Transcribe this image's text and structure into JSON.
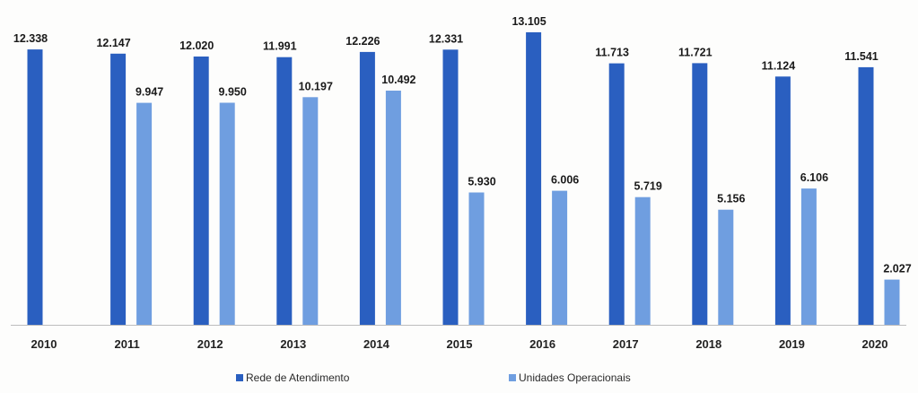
{
  "chart_data": {
    "type": "bar",
    "title": "",
    "xlabel": "",
    "ylabel": "",
    "categories": [
      "2010",
      "2011",
      "2012",
      "2013",
      "2014",
      "2015",
      "2016",
      "2017",
      "2018",
      "2019",
      "2020"
    ],
    "series": [
      {
        "name": "Rede de Atendimento",
        "color": "#2a5fc0",
        "values": [
          12338,
          12147,
          12020,
          11991,
          12226,
          12331,
          13105,
          11713,
          11721,
          11124,
          11541
        ],
        "labels": [
          "12.338",
          "12.147",
          "12.020",
          "11.991",
          "12.226",
          "12.331",
          "13.105",
          "11.713",
          "11.721",
          "11.124",
          "11.541"
        ]
      },
      {
        "name": "Unidades Operacionais",
        "color": "#6f9ee0",
        "values": [
          null,
          9947,
          9950,
          10197,
          10492,
          5930,
          6006,
          5719,
          5156,
          6106,
          2027
        ],
        "labels": [
          "",
          "9.947",
          "9.950",
          "10.197",
          "10.492",
          "5.930",
          "6.006",
          "5.719",
          "5.156",
          "6.106",
          "2.027"
        ]
      }
    ],
    "ylim": [
      0,
      13105
    ],
    "grid": false,
    "legend_position": "bottom"
  }
}
